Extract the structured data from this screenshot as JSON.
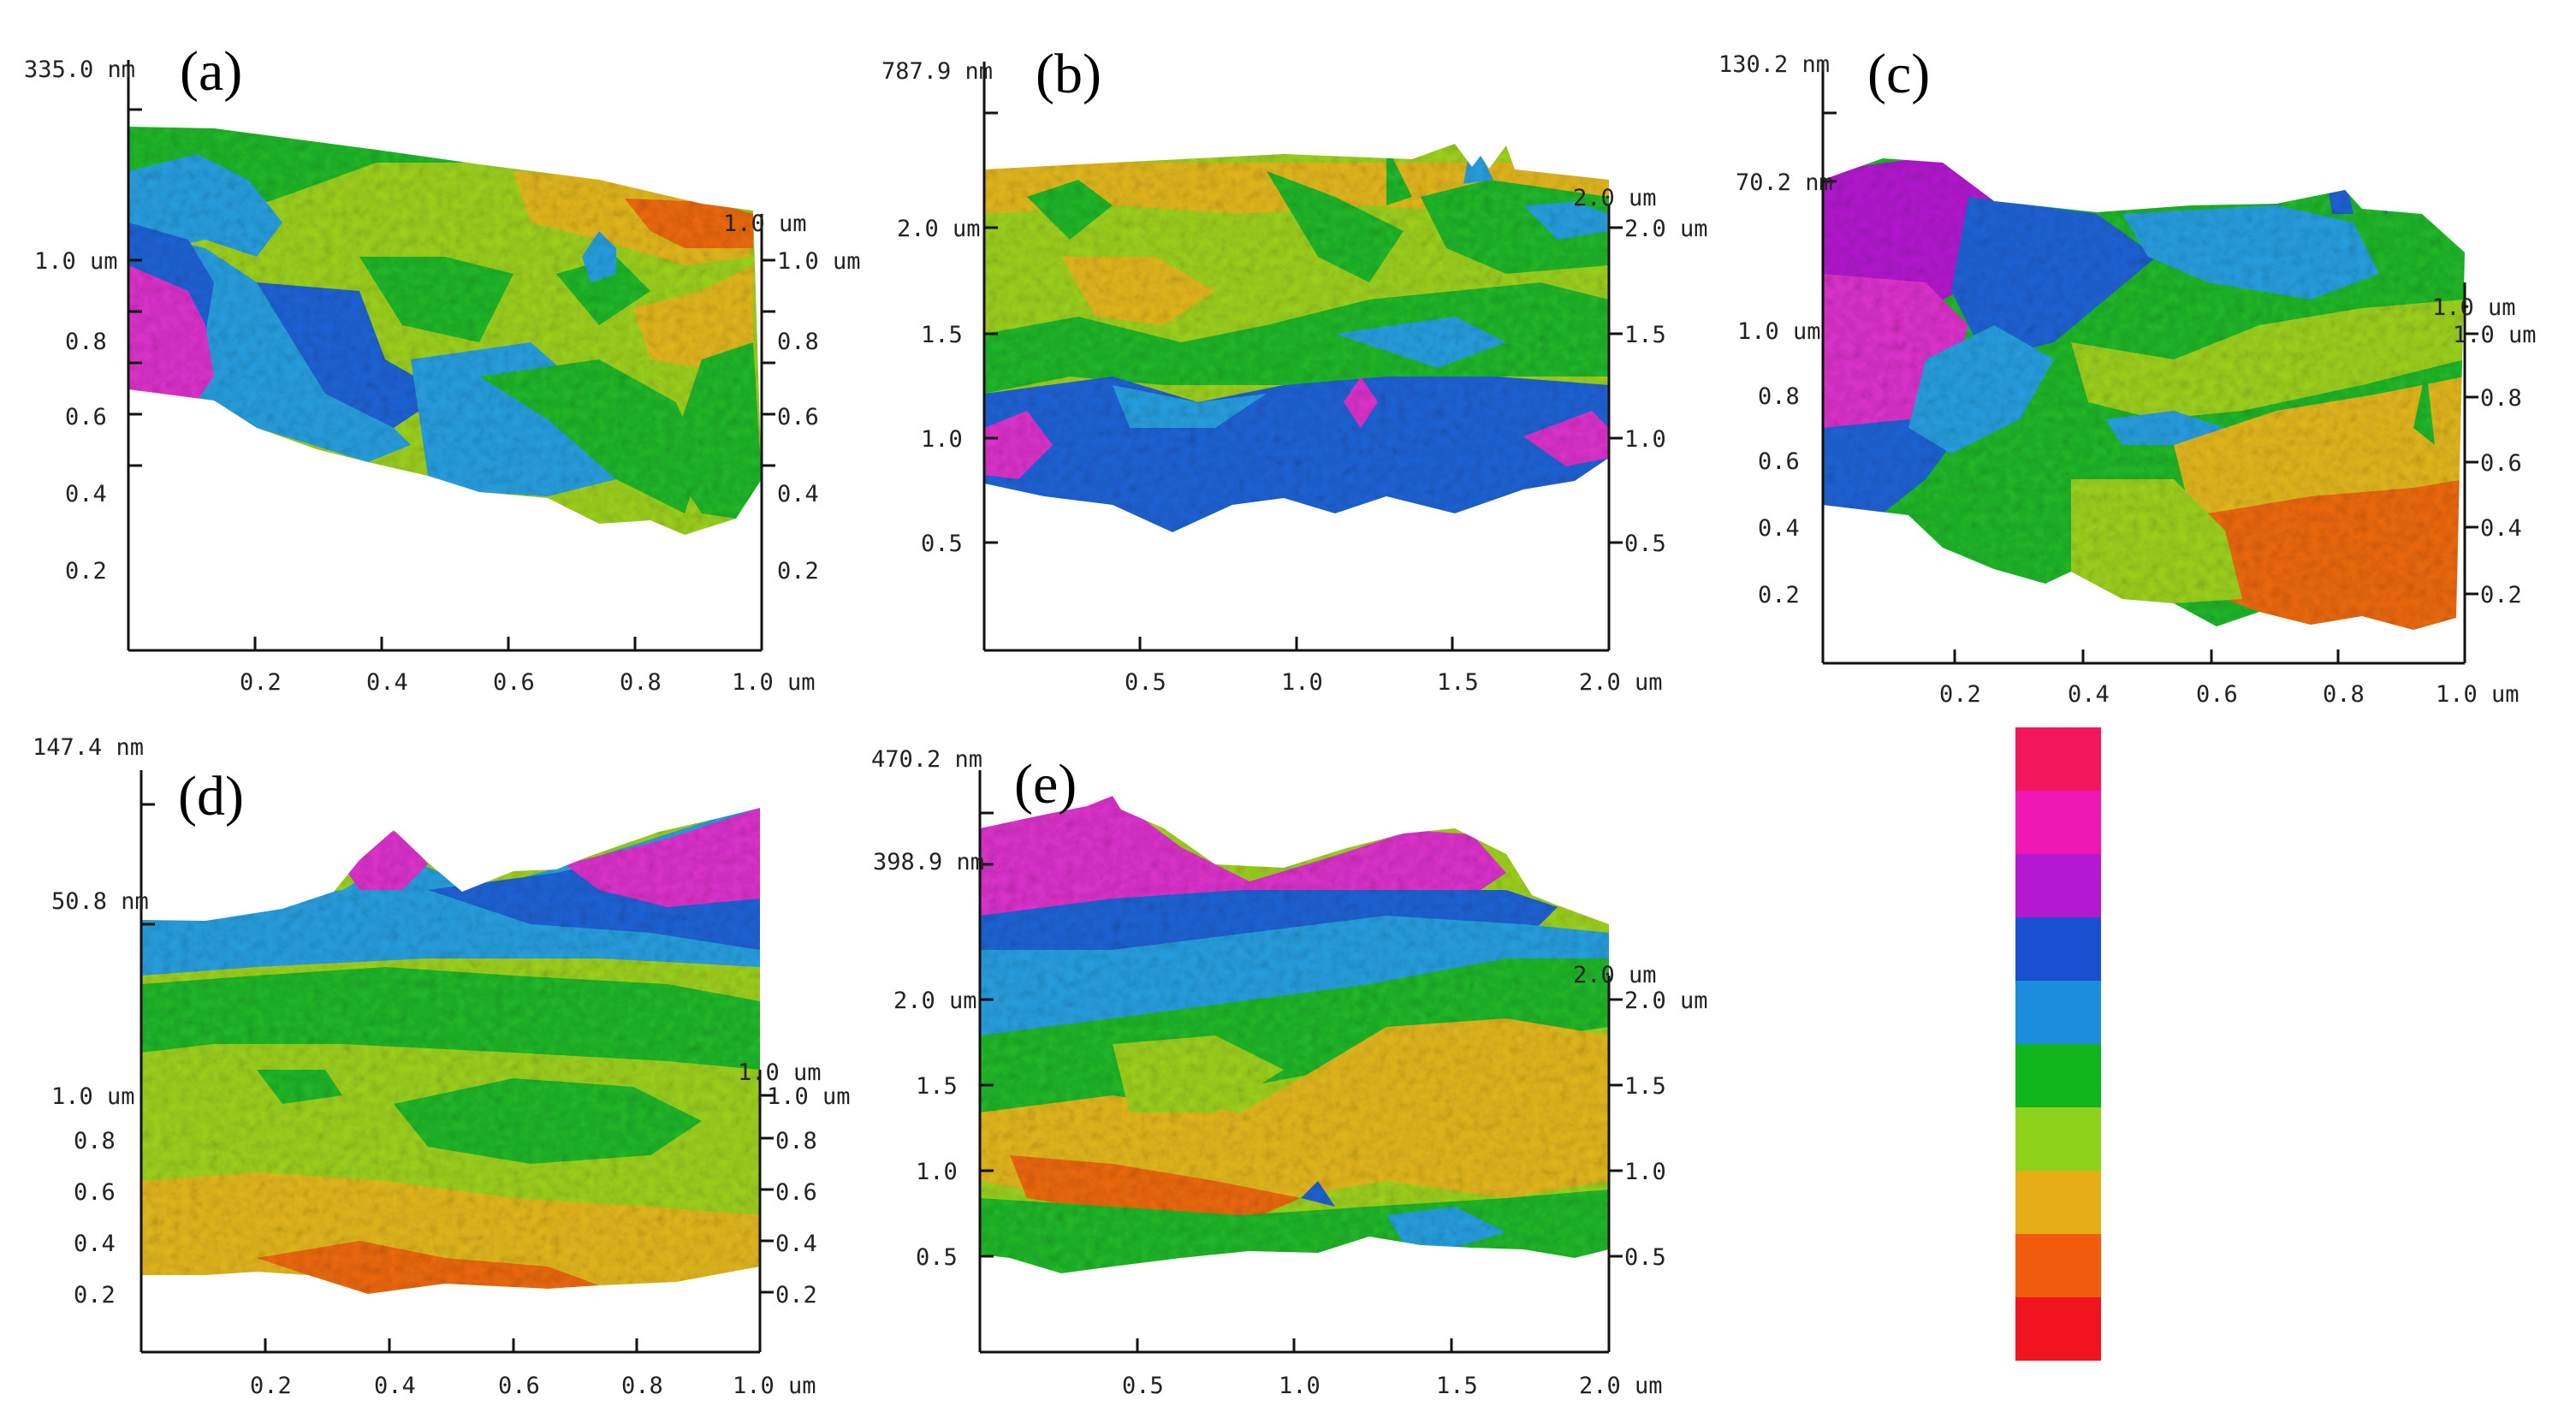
{
  "figure": {
    "panels": [
      {
        "label": "(a)",
        "z_max": "335.0 nm",
        "z_mid": "",
        "y_unit_label": "1.0 um",
        "y_left_ticks": [
          "1.0 um",
          "0.8",
          "0.6",
          "0.4",
          "0.2"
        ],
        "y_right_ticks": [
          "1.0 um",
          "0.8",
          "0.6",
          "0.4",
          "0.2"
        ],
        "x_ticks": [
          "0.2",
          "0.4",
          "0.6",
          "0.8",
          "1.0 um"
        ]
      },
      {
        "label": "(b)",
        "z_max": "787.9 nm",
        "z_mid": "",
        "y_unit_label": "2.0 um",
        "y_left_ticks": [
          "2.0 um",
          "1.5",
          "1.0",
          "0.5"
        ],
        "y_right_ticks": [
          "2.0 um",
          "1.5",
          "1.0",
          "0.5"
        ],
        "x_ticks": [
          "0.5",
          "1.0",
          "1.5",
          "2.0 um"
        ]
      },
      {
        "label": "(c)",
        "z_max": "130.2 nm",
        "z_mid": "70.2 nm",
        "y_unit_label": "1.0 um",
        "y_left_ticks": [
          "1.0 um",
          "0.8",
          "0.6",
          "0.4",
          "0.2"
        ],
        "y_right_ticks": [
          "1.0 um",
          "0.8",
          "0.6",
          "0.4",
          "0.2"
        ],
        "x_ticks": [
          "0.2",
          "0.4",
          "0.6",
          "0.8",
          "1.0 um"
        ]
      },
      {
        "label": "(d)",
        "z_max": "147.4 nm",
        "z_mid": "50.8 nm",
        "y_unit_label": "1.0 um",
        "y_left_ticks": [
          "1.0 um",
          "0.8",
          "0.6",
          "0.4",
          "0.2"
        ],
        "y_right_ticks": [
          "1.0 um",
          "0.8",
          "0.6",
          "0.4",
          "0.2"
        ],
        "x_ticks": [
          "0.2",
          "0.4",
          "0.6",
          "0.8",
          "1.0 um"
        ]
      },
      {
        "label": "(e)",
        "z_max": "470.2 nm",
        "z_mid": "398.9 nm",
        "y_unit_label": "2.0 um",
        "y_left_ticks": [
          "2.0 um",
          "1.5",
          "1.0",
          "0.5"
        ],
        "y_right_ticks": [
          "2.0 um",
          "1.5",
          "1.0",
          "0.5"
        ],
        "x_ticks": [
          "0.5",
          "1.0",
          "1.5",
          "2.0 um"
        ]
      }
    ],
    "color_scale": [
      "#f2175c",
      "#ee17b4",
      "#b418d0",
      "#1850d0",
      "#1c8ddc",
      "#10b41c",
      "#8ed21c",
      "#e4ae14",
      "#f05c0c",
      "#f0141e"
    ],
    "height_colors": {
      "magenta": "#dd33cc",
      "blue": "#1f63d6",
      "lightblue": "#28a0e0",
      "green": "#21b82a",
      "lime": "#9ed21e",
      "yellow": "#e3b81d",
      "orange": "#ee6a12"
    }
  }
}
